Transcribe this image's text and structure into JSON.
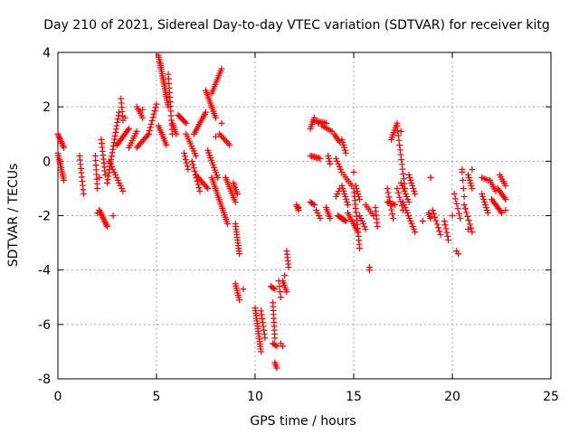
{
  "chart_data": {
    "type": "scatter",
    "title": "Day 210 of 2021, Sidereal Day-to-day VTEC variation (SDTVAR) for receiver kitg",
    "xlabel": "GPS time / hours",
    "ylabel": "SDTVAR / TECUs",
    "xlim": [
      0,
      25
    ],
    "ylim": [
      -8,
      4
    ],
    "xticks": [
      0,
      5,
      10,
      15,
      20,
      25
    ],
    "yticks": [
      -8,
      -6,
      -4,
      -2,
      0,
      2,
      4
    ],
    "xtick_labels": [
      "0",
      "5",
      "10",
      "15",
      "20",
      "25"
    ],
    "ytick_labels": [
      "-8",
      "-6",
      "-4",
      "-2",
      "0",
      "2",
      "4"
    ],
    "grid": true,
    "marker": "+",
    "color": "#ff0000",
    "segments": [
      {
        "x0": 0.0,
        "y0": 1.0,
        "x1": 0.3,
        "y1": 0.5,
        "n": 10
      },
      {
        "x0": 0.0,
        "y0": 0.3,
        "x1": 0.3,
        "y1": -0.7,
        "n": 14
      },
      {
        "x0": 1.1,
        "y0": 0.2,
        "x1": 1.3,
        "y1": -1.2,
        "n": 10
      },
      {
        "x0": 1.9,
        "y0": 0.2,
        "x1": 2.0,
        "y1": -1.0,
        "n": 8
      },
      {
        "x0": 2.1,
        "y0": -1.8,
        "x1": 2.5,
        "y1": -2.4,
        "n": 12
      },
      {
        "x0": 2.2,
        "y0": 0.8,
        "x1": 2.4,
        "y1": -0.5,
        "n": 10
      },
      {
        "x0": 2.5,
        "y0": -0.8,
        "x1": 3.1,
        "y1": 1.8,
        "n": 22
      },
      {
        "x0": 2.6,
        "y0": 0.0,
        "x1": 3.3,
        "y1": -1.1,
        "n": 12
      },
      {
        "x0": 3.0,
        "y0": 0.6,
        "x1": 3.6,
        "y1": 1.2,
        "n": 12
      },
      {
        "x0": 3.2,
        "y0": 2.3,
        "x1": 3.3,
        "y1": 1.5,
        "n": 6
      },
      {
        "x0": 3.6,
        "y0": 0.5,
        "x1": 4.0,
        "y1": 1.1,
        "n": 8
      },
      {
        "x0": 4.0,
        "y0": 2.0,
        "x1": 4.3,
        "y1": 1.6,
        "n": 6
      },
      {
        "x0": 4.0,
        "y0": 0.5,
        "x1": 4.6,
        "y1": 1.0,
        "n": 10
      },
      {
        "x0": 4.6,
        "y0": 1.0,
        "x1": 5.0,
        "y1": 2.1,
        "n": 10
      },
      {
        "x0": 5.1,
        "y0": 3.9,
        "x1": 5.6,
        "y1": 2.0,
        "n": 26
      },
      {
        "x0": 5.1,
        "y0": 1.3,
        "x1": 5.5,
        "y1": 0.6,
        "n": 10
      },
      {
        "x0": 5.6,
        "y0": 3.2,
        "x1": 5.8,
        "y1": 1.0,
        "n": 14
      },
      {
        "x0": 5.8,
        "y0": 1.4,
        "x1": 6.0,
        "y1": 1.0,
        "n": 6
      },
      {
        "x0": 6.1,
        "y0": 1.7,
        "x1": 6.5,
        "y1": 1.4,
        "n": 8
      },
      {
        "x0": 6.4,
        "y0": 0.3,
        "x1": 6.6,
        "y1": -0.3,
        "n": 6
      },
      {
        "x0": 6.5,
        "y0": 1.0,
        "x1": 7.0,
        "y1": 0.2,
        "n": 10
      },
      {
        "x0": 6.8,
        "y0": 0.0,
        "x1": 7.2,
        "y1": -1.1,
        "n": 10
      },
      {
        "x0": 6.9,
        "y0": 1.0,
        "x1": 7.5,
        "y1": 1.8,
        "n": 12
      },
      {
        "x0": 7.5,
        "y0": 2.6,
        "x1": 8.0,
        "y1": 1.6,
        "n": 14
      },
      {
        "x0": 7.0,
        "y0": -0.5,
        "x1": 7.6,
        "y1": -1.0,
        "n": 10
      },
      {
        "x0": 7.6,
        "y0": 0.4,
        "x1": 8.1,
        "y1": -0.6,
        "n": 12
      },
      {
        "x0": 7.8,
        "y0": 2.5,
        "x1": 8.3,
        "y1": 3.4,
        "n": 12
      },
      {
        "x0": 7.8,
        "y0": -0.6,
        "x1": 8.6,
        "y1": -2.3,
        "n": 22
      },
      {
        "x0": 8.2,
        "y0": 1.0,
        "x1": 8.7,
        "y1": 0.6,
        "n": 8
      },
      {
        "x0": 8.5,
        "y0": -0.6,
        "x1": 9.0,
        "y1": -1.5,
        "n": 12
      },
      {
        "x0": 8.9,
        "y0": -0.8,
        "x1": 9.1,
        "y1": -1.2,
        "n": 6
      },
      {
        "x0": 9.0,
        "y0": -2.3,
        "x1": 9.2,
        "y1": -3.4,
        "n": 12
      },
      {
        "x0": 9.0,
        "y0": -4.5,
        "x1": 9.2,
        "y1": -5.1,
        "n": 8
      },
      {
        "x0": 10.0,
        "y0": -5.4,
        "x1": 10.3,
        "y1": -7.0,
        "n": 18
      },
      {
        "x0": 10.3,
        "y0": -5.5,
        "x1": 10.5,
        "y1": -6.5,
        "n": 8
      },
      {
        "x0": 10.8,
        "y0": -4.6,
        "x1": 11.0,
        "y1": -4.7,
        "n": 4
      },
      {
        "x0": 10.9,
        "y0": -5.2,
        "x1": 11.0,
        "y1": -6.5,
        "n": 10
      },
      {
        "x0": 10.9,
        "y0": -6.7,
        "x1": 11.1,
        "y1": -6.8,
        "n": 4
      },
      {
        "x0": 11.0,
        "y0": -7.4,
        "x1": 11.1,
        "y1": -7.6,
        "n": 4
      },
      {
        "x0": 11.2,
        "y0": -4.4,
        "x1": 11.3,
        "y1": -5.0,
        "n": 4
      },
      {
        "x0": 11.3,
        "y0": -6.7,
        "x1": 11.4,
        "y1": -6.8,
        "n": 2
      },
      {
        "x0": 11.4,
        "y0": -4.4,
        "x1": 11.6,
        "y1": -4.8,
        "n": 6
      },
      {
        "x0": 11.6,
        "y0": -3.3,
        "x1": 11.7,
        "y1": -3.9,
        "n": 6
      },
      {
        "x0": 12.1,
        "y0": -1.6,
        "x1": 12.2,
        "y1": -1.8,
        "n": 4
      },
      {
        "x0": 12.8,
        "y0": 1.2,
        "x1": 13.0,
        "y1": 1.6,
        "n": 6
      },
      {
        "x0": 12.8,
        "y0": 0.2,
        "x1": 13.3,
        "y1": 0.1,
        "n": 8
      },
      {
        "x0": 12.8,
        "y0": -1.5,
        "x1": 13.0,
        "y1": -1.6,
        "n": 4
      },
      {
        "x0": 13.0,
        "y0": 1.5,
        "x1": 13.6,
        "y1": 1.4,
        "n": 8
      },
      {
        "x0": 13.1,
        "y0": -1.8,
        "x1": 13.3,
        "y1": -2.1,
        "n": 4
      },
      {
        "x0": 13.4,
        "y0": 1.3,
        "x1": 13.9,
        "y1": 1.1,
        "n": 6
      },
      {
        "x0": 13.6,
        "y0": -1.7,
        "x1": 13.8,
        "y1": -2.1,
        "n": 6
      },
      {
        "x0": 13.7,
        "y0": 0.2,
        "x1": 13.8,
        "y1": -0.1,
        "n": 4
      },
      {
        "x0": 14.0,
        "y0": 1.0,
        "x1": 14.3,
        "y1": 0.7,
        "n": 6
      },
      {
        "x0": 14.1,
        "y0": 0.1,
        "x1": 14.4,
        "y1": -0.4,
        "n": 6
      },
      {
        "x0": 14.1,
        "y0": -1.3,
        "x1": 14.3,
        "y1": -1.0,
        "n": 4
      },
      {
        "x0": 14.2,
        "y0": -2.0,
        "x1": 14.6,
        "y1": -2.2,
        "n": 8
      },
      {
        "x0": 14.4,
        "y0": 0.8,
        "x1": 14.6,
        "y1": 0.3,
        "n": 6
      },
      {
        "x0": 14.4,
        "y0": -0.9,
        "x1": 14.7,
        "y1": -1.6,
        "n": 8
      },
      {
        "x0": 14.5,
        "y0": -0.5,
        "x1": 14.9,
        "y1": -0.9,
        "n": 6
      },
      {
        "x0": 14.7,
        "y0": -1.9,
        "x1": 15.2,
        "y1": -2.6,
        "n": 10
      },
      {
        "x0": 15.0,
        "y0": -1.0,
        "x1": 15.3,
        "y1": -3.2,
        "n": 16
      },
      {
        "x0": 15.1,
        "y0": -0.9,
        "x1": 15.3,
        "y1": -1.4,
        "n": 6
      },
      {
        "x0": 15.3,
        "y0": -2.0,
        "x1": 15.6,
        "y1": -2.5,
        "n": 6
      },
      {
        "x0": 15.6,
        "y0": -1.6,
        "x1": 16.0,
        "y1": -2.0,
        "n": 6
      },
      {
        "x0": 15.8,
        "y0": -3.9,
        "x1": 15.8,
        "y1": -4.0,
        "n": 2
      },
      {
        "x0": 16.1,
        "y0": -1.7,
        "x1": 16.2,
        "y1": -2.4,
        "n": 6
      },
      {
        "x0": 16.7,
        "y0": -1.5,
        "x1": 17.1,
        "y1": -1.6,
        "n": 6
      },
      {
        "x0": 16.7,
        "y0": -1.0,
        "x1": 17.0,
        "y1": -2.1,
        "n": 8
      },
      {
        "x0": 16.9,
        "y0": 0.8,
        "x1": 17.2,
        "y1": 1.4,
        "n": 8
      },
      {
        "x0": 17.2,
        "y0": 1.3,
        "x1": 17.6,
        "y1": -1.0,
        "n": 14
      },
      {
        "x0": 17.2,
        "y0": -1.0,
        "x1": 17.5,
        "y1": -1.8,
        "n": 6
      },
      {
        "x0": 17.4,
        "y0": -0.8,
        "x1": 17.8,
        "y1": -1.5,
        "n": 8
      },
      {
        "x0": 17.5,
        "y0": -1.5,
        "x1": 18.1,
        "y1": -2.6,
        "n": 12
      },
      {
        "x0": 17.8,
        "y0": -0.5,
        "x1": 18.1,
        "y1": -1.2,
        "n": 8
      },
      {
        "x0": 18.8,
        "y0": -1.9,
        "x1": 18.9,
        "y1": -2.1,
        "n": 4
      },
      {
        "x0": 18.9,
        "y0": -0.6,
        "x1": 18.9,
        "y1": -0.6,
        "n": 2
      },
      {
        "x0": 19.0,
        "y0": -1.8,
        "x1": 19.4,
        "y1": -2.7,
        "n": 8
      },
      {
        "x0": 19.6,
        "y0": -2.2,
        "x1": 19.8,
        "y1": -2.9,
        "n": 6
      },
      {
        "x0": 20.1,
        "y0": -1.2,
        "x1": 20.4,
        "y1": -2.1,
        "n": 6
      },
      {
        "x0": 20.2,
        "y0": -3.3,
        "x1": 20.3,
        "y1": -3.4,
        "n": 2
      },
      {
        "x0": 20.5,
        "y0": -0.4,
        "x1": 20.6,
        "y1": -1.3,
        "n": 4
      },
      {
        "x0": 20.6,
        "y0": -1.6,
        "x1": 21.0,
        "y1": -2.6,
        "n": 8
      },
      {
        "x0": 20.8,
        "y0": -0.5,
        "x1": 21.0,
        "y1": -1.0,
        "n": 6
      },
      {
        "x0": 21.5,
        "y0": -0.6,
        "x1": 21.8,
        "y1": -0.7,
        "n": 4
      },
      {
        "x0": 21.5,
        "y0": -1.2,
        "x1": 21.8,
        "y1": -1.9,
        "n": 8
      },
      {
        "x0": 21.9,
        "y0": -0.7,
        "x1": 22.2,
        "y1": -1.1,
        "n": 6
      },
      {
        "x0": 22.0,
        "y0": -1.4,
        "x1": 22.5,
        "y1": -1.9,
        "n": 10
      },
      {
        "x0": 22.3,
        "y0": -1.0,
        "x1": 22.7,
        "y1": -1.4,
        "n": 8
      },
      {
        "x0": 22.4,
        "y0": -0.5,
        "x1": 22.7,
        "y1": -0.9,
        "n": 6
      }
    ],
    "points": [
      {
        "x": 0.1,
        "y": 0.0
      },
      {
        "x": 2.0,
        "y": -1.9
      },
      {
        "x": 2.1,
        "y": -0.6
      },
      {
        "x": 2.8,
        "y": -2.0
      },
      {
        "x": 3.4,
        "y": 1.6
      },
      {
        "x": 4.3,
        "y": 1.9
      },
      {
        "x": 5.2,
        "y": 3.6
      },
      {
        "x": 8.0,
        "y": 0.9
      },
      {
        "x": 8.3,
        "y": 1.4
      },
      {
        "x": 9.4,
        "y": -4.7
      },
      {
        "x": 11.5,
        "y": -4.2
      },
      {
        "x": 12.2,
        "y": -1.7
      },
      {
        "x": 13.2,
        "y": 1.4
      },
      {
        "x": 15.0,
        "y": -0.4
      },
      {
        "x": 15.8,
        "y": -3.9
      },
      {
        "x": 17.4,
        "y": 1.1
      },
      {
        "x": 18.5,
        "y": -2.2
      },
      {
        "x": 20.0,
        "y": -2.0
      },
      {
        "x": 20.5,
        "y": -0.3
      },
      {
        "x": 20.8,
        "y": -2.5
      },
      {
        "x": 21.0,
        "y": -0.3
      },
      {
        "x": 22.7,
        "y": -1.8
      }
    ]
  }
}
